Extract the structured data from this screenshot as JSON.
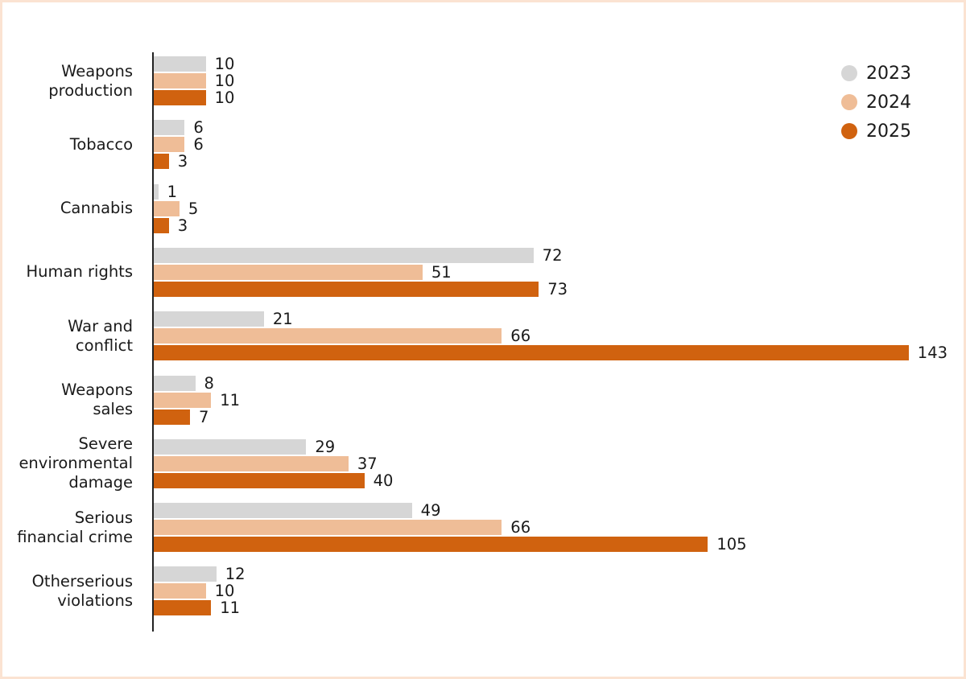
{
  "chart_data": {
    "type": "bar",
    "orientation": "horizontal",
    "title": "",
    "xlabel": "",
    "ylabel": "",
    "grid": false,
    "legend_position": "top-right",
    "categories": [
      "Weapons production",
      "Tobacco",
      "Cannabis",
      "Human rights",
      "War and conflict",
      "Weapons sales",
      "Severe environmental damage",
      "Serious financial crime",
      "Otherserious violations"
    ],
    "category_label_lines": [
      [
        "Weapons",
        "production"
      ],
      [
        "Tobacco"
      ],
      [
        "Cannabis"
      ],
      [
        "Human rights"
      ],
      [
        "War and",
        "conflict"
      ],
      [
        "Weapons",
        "sales"
      ],
      [
        "Severe",
        "environmental",
        "damage"
      ],
      [
        "Serious",
        "financial crime"
      ],
      [
        "Otherserious",
        "violations"
      ]
    ],
    "series": [
      {
        "name": "2023",
        "color": "#d6d6d6",
        "values": [
          10,
          6,
          1,
          72,
          21,
          8,
          29,
          49,
          12
        ]
      },
      {
        "name": "2024",
        "color": "#efbd97",
        "values": [
          10,
          6,
          5,
          51,
          66,
          11,
          37,
          66,
          10
        ]
      },
      {
        "name": "2025",
        "color": "#d0620f",
        "values": [
          10,
          3,
          3,
          73,
          143,
          7,
          40,
          105,
          11
        ]
      }
    ],
    "xlim": [
      0,
      143
    ]
  },
  "frame": {
    "border_color": "#fbe3d2",
    "background": "#ffffff"
  }
}
